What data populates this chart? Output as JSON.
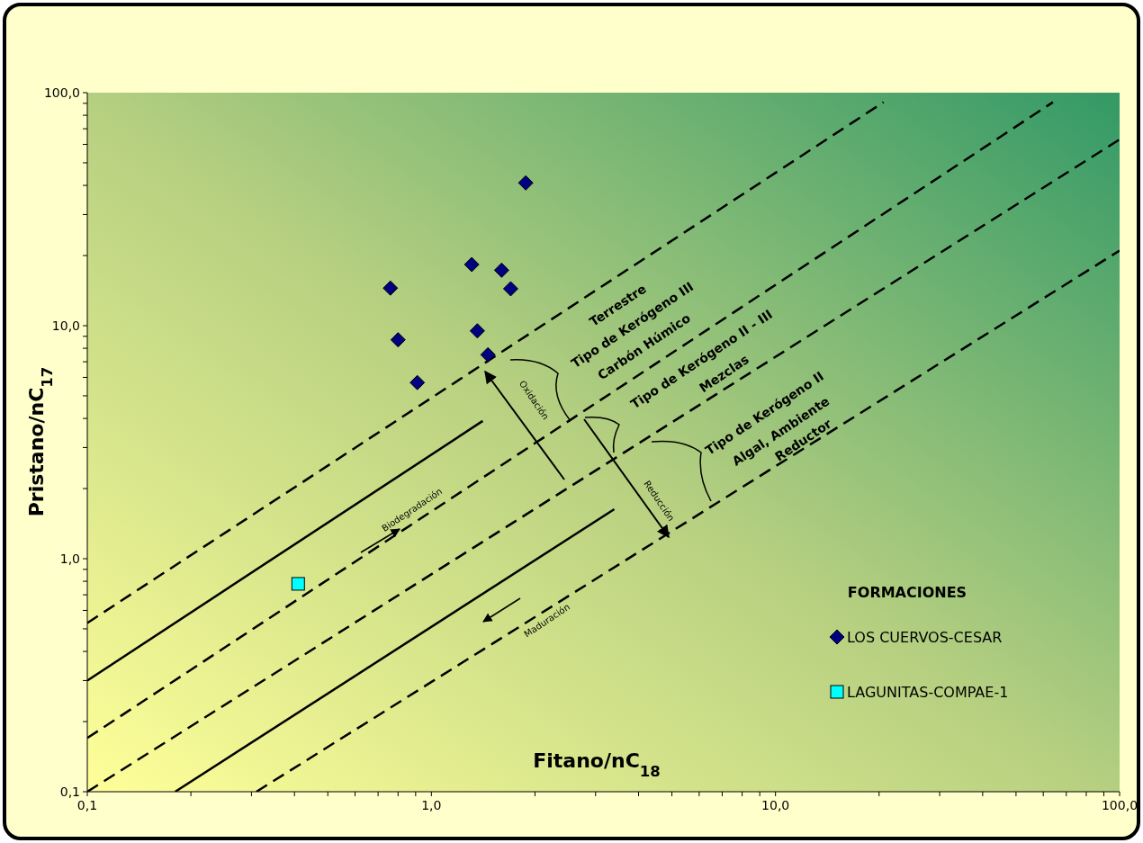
{
  "chart_data": {
    "type": "scatter",
    "xlabel": "Fitano/nC$_{18}$",
    "ylabel": "Pristano/nC$_{17}$",
    "log": "xy",
    "grid": false,
    "legend": "bottom right",
    "legend_title": "FORMACIONES",
    "xlim": [
      0.1,
      100
    ],
    "ylim": [
      0.1,
      100
    ],
    "xticks": [
      {
        "value": 0.1,
        "label": "0,1"
      },
      {
        "value": 0.2,
        "label": null
      },
      {
        "value": 0.3,
        "label": null
      },
      {
        "value": 0.4,
        "label": null
      },
      {
        "value": 0.5,
        "label": null
      },
      {
        "value": 0.6,
        "label": null
      },
      {
        "value": 0.7,
        "label": null
      },
      {
        "value": 0.8,
        "label": null
      },
      {
        "value": 0.9,
        "label": null
      },
      {
        "value": 1,
        "label": "1,0"
      },
      {
        "value": 2,
        "label": null
      },
      {
        "value": 3,
        "label": null
      },
      {
        "value": 4,
        "label": null
      },
      {
        "value": 5,
        "label": null
      },
      {
        "value": 6,
        "label": null
      },
      {
        "value": 7,
        "label": null
      },
      {
        "value": 8,
        "label": null
      },
      {
        "value": 9,
        "label": null
      },
      {
        "value": 10,
        "label": "10,0"
      },
      {
        "value": 20,
        "label": null
      },
      {
        "value": 30,
        "label": null
      },
      {
        "value": 40,
        "label": null
      },
      {
        "value": 50,
        "label": null
      },
      {
        "value": 60,
        "label": null
      },
      {
        "value": 70,
        "label": null
      },
      {
        "value": 80,
        "label": null
      },
      {
        "value": 90,
        "label": null
      },
      {
        "value": 100,
        "label": "100,0"
      }
    ],
    "yticks": [
      {
        "value": 0.1,
        "label": "0,1"
      },
      {
        "value": 0.2,
        "label": null
      },
      {
        "value": 0.3,
        "label": null
      },
      {
        "value": 0.4,
        "label": null
      },
      {
        "value": 0.5,
        "label": null
      },
      {
        "value": 0.6,
        "label": null
      },
      {
        "value": 0.7,
        "label": null
      },
      {
        "value": 0.8,
        "label": null
      },
      {
        "value": 0.9,
        "label": null
      },
      {
        "value": 1,
        "label": "1,0"
      },
      {
        "value": 2,
        "label": null
      },
      {
        "value": 3,
        "label": null
      },
      {
        "value": 4,
        "label": null
      },
      {
        "value": 5,
        "label": null
      },
      {
        "value": 6,
        "label": null
      },
      {
        "value": 7,
        "label": null
      },
      {
        "value": 8,
        "label": null
      },
      {
        "value": 9,
        "label": null
      },
      {
        "value": 10,
        "label": "10,0"
      },
      {
        "value": 20,
        "label": null
      },
      {
        "value": 30,
        "label": null
      },
      {
        "value": 40,
        "label": null
      },
      {
        "value": 50,
        "label": null
      },
      {
        "value": 60,
        "label": null
      },
      {
        "value": 70,
        "label": null
      },
      {
        "value": 80,
        "label": null
      },
      {
        "value": 90,
        "label": null
      },
      {
        "value": 100,
        "label": "100,0"
      }
    ],
    "series": [
      {
        "type": "line",
        "color": "#000000",
        "line_style": "dashed",
        "marker": "none",
        "x": [
          0.1,
          20.6
        ],
        "values": [
          0.53,
          91
        ]
      },
      {
        "type": "line",
        "color": "#000000",
        "line_style": "dashed",
        "marker": "none",
        "x": [
          0.1,
          64
        ],
        "values": [
          0.17,
          91
        ]
      },
      {
        "type": "line",
        "color": "#000000",
        "line_style": "dashed",
        "marker": "none",
        "x": [
          0.1,
          100
        ],
        "values": [
          0.1,
          63
        ]
      },
      {
        "type": "line",
        "color": "#000000",
        "line_style": "dashed",
        "marker": "none",
        "x": [
          0.31,
          100
        ],
        "values": [
          0.1,
          21
        ]
      },
      {
        "type": "line",
        "color": "#000000",
        "line_style": "solid",
        "marker": "none",
        "x": [
          0.1,
          1.41
        ],
        "values": [
          0.3,
          3.9
        ]
      },
      {
        "type": "line",
        "color": "#000000",
        "line_style": "solid",
        "marker": "none",
        "x": [
          0.18,
          3.4
        ],
        "values": [
          0.1,
          1.63
        ]
      },
      {
        "name": "LOS CUERVOS-CESAR",
        "color": "#000080",
        "marker": "diamond",
        "x": [
          1.88,
          0.76,
          0.8,
          0.91,
          1.31,
          1.36,
          1.46,
          1.6,
          1.7
        ],
        "values": [
          41,
          14.5,
          8.7,
          5.7,
          18.3,
          9.5,
          7.5,
          17.3,
          14.4
        ]
      },
      {
        "name": "LAGUNITAS-COMPAE-1",
        "color": "#00ffff",
        "marker": "square",
        "x": [
          0.41
        ],
        "values": [
          0.78
        ]
      }
    ],
    "annotations": [
      "Terrestre",
      "Tipo de Kerógeno III",
      "Carbón Húmico",
      "Tipo de Kerógeno II - III",
      "Mezclas",
      "Tipo de Kerógeno II",
      "Algal, Ambiente",
      "Reductor",
      "Oxidación",
      "Reducción",
      "Biodegradación",
      "Maduración"
    ]
  }
}
